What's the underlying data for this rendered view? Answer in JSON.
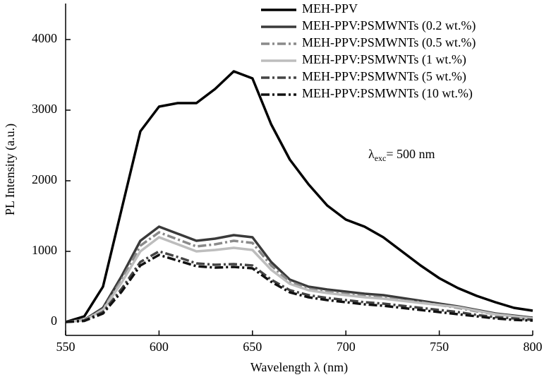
{
  "chart_data": {
    "type": "line",
    "x_label": "Wavelength  λ (nm)",
    "y_label": "PL Intensity (a.u.)",
    "annotation": {
      "symbol": "λ",
      "subscript": "exc",
      "text": "= 500 nm"
    },
    "x": [
      550,
      560,
      570,
      580,
      590,
      600,
      610,
      620,
      630,
      640,
      650,
      660,
      670,
      680,
      690,
      700,
      710,
      720,
      730,
      740,
      750,
      760,
      770,
      780,
      790,
      800
    ],
    "xlim": [
      550,
      800
    ],
    "xticks": [
      550,
      600,
      650,
      700,
      750,
      800
    ],
    "ylim": [
      -190,
      4510
    ],
    "yticks": [
      0,
      1000,
      2000,
      3000,
      4000
    ],
    "legend": "upper right",
    "series": [
      {
        "name": "MEH-PPV",
        "color": "#000000",
        "dash": "solid",
        "values": [
          0,
          80,
          500,
          1600,
          2700,
          3050,
          3100,
          3100,
          3300,
          3550,
          3450,
          2800,
          2300,
          1950,
          1650,
          1450,
          1350,
          1200,
          1000,
          800,
          620,
          480,
          370,
          280,
          200,
          160
        ]
      },
      {
        "name": "MEH-PPV:PSMWNTs (0.2 wt.%)",
        "color": "#3a3a3a",
        "dash": "solid",
        "values": [
          0,
          30,
          200,
          650,
          1150,
          1350,
          1250,
          1150,
          1180,
          1230,
          1200,
          850,
          600,
          500,
          460,
          430,
          400,
          380,
          340,
          300,
          260,
          220,
          170,
          120,
          90,
          60
        ]
      },
      {
        "name": "MEH-PPV:PSMWNTs (0.5 wt.%)",
        "color": "#8a8a8a",
        "dash": "dashdot",
        "values": [
          0,
          25,
          180,
          600,
          1080,
          1270,
          1170,
          1070,
          1100,
          1150,
          1120,
          800,
          570,
          470,
          430,
          400,
          370,
          350,
          310,
          280,
          240,
          200,
          150,
          110,
          80,
          50
        ]
      },
      {
        "name": "MEH-PPV:PSMWNTs (1 wt.%)",
        "color": "#bdbdbd",
        "dash": "solid",
        "values": [
          0,
          25,
          170,
          560,
          1000,
          1200,
          1100,
          1000,
          1020,
          1050,
          1020,
          740,
          540,
          450,
          410,
          380,
          350,
          330,
          300,
          270,
          240,
          210,
          160,
          110,
          80,
          50
        ]
      },
      {
        "name": "MEH-PPV:PSMWNTs (5 wt.%)",
        "color": "#444444",
        "dash": "dashdot",
        "values": [
          0,
          20,
          140,
          470,
          850,
          1000,
          920,
          830,
          810,
          820,
          800,
          600,
          450,
          380,
          340,
          310,
          280,
          260,
          230,
          200,
          170,
          140,
          100,
          70,
          50,
          30
        ]
      },
      {
        "name": "MEH-PPV:PSMWNTs (10 wt.%)",
        "color": "#111111",
        "dash": "dashdot",
        "values": [
          0,
          15,
          120,
          430,
          800,
          950,
          870,
          790,
          770,
          780,
          760,
          570,
          420,
          350,
          310,
          280,
          250,
          230,
          200,
          170,
          140,
          110,
          80,
          50,
          30,
          20
        ]
      }
    ]
  }
}
